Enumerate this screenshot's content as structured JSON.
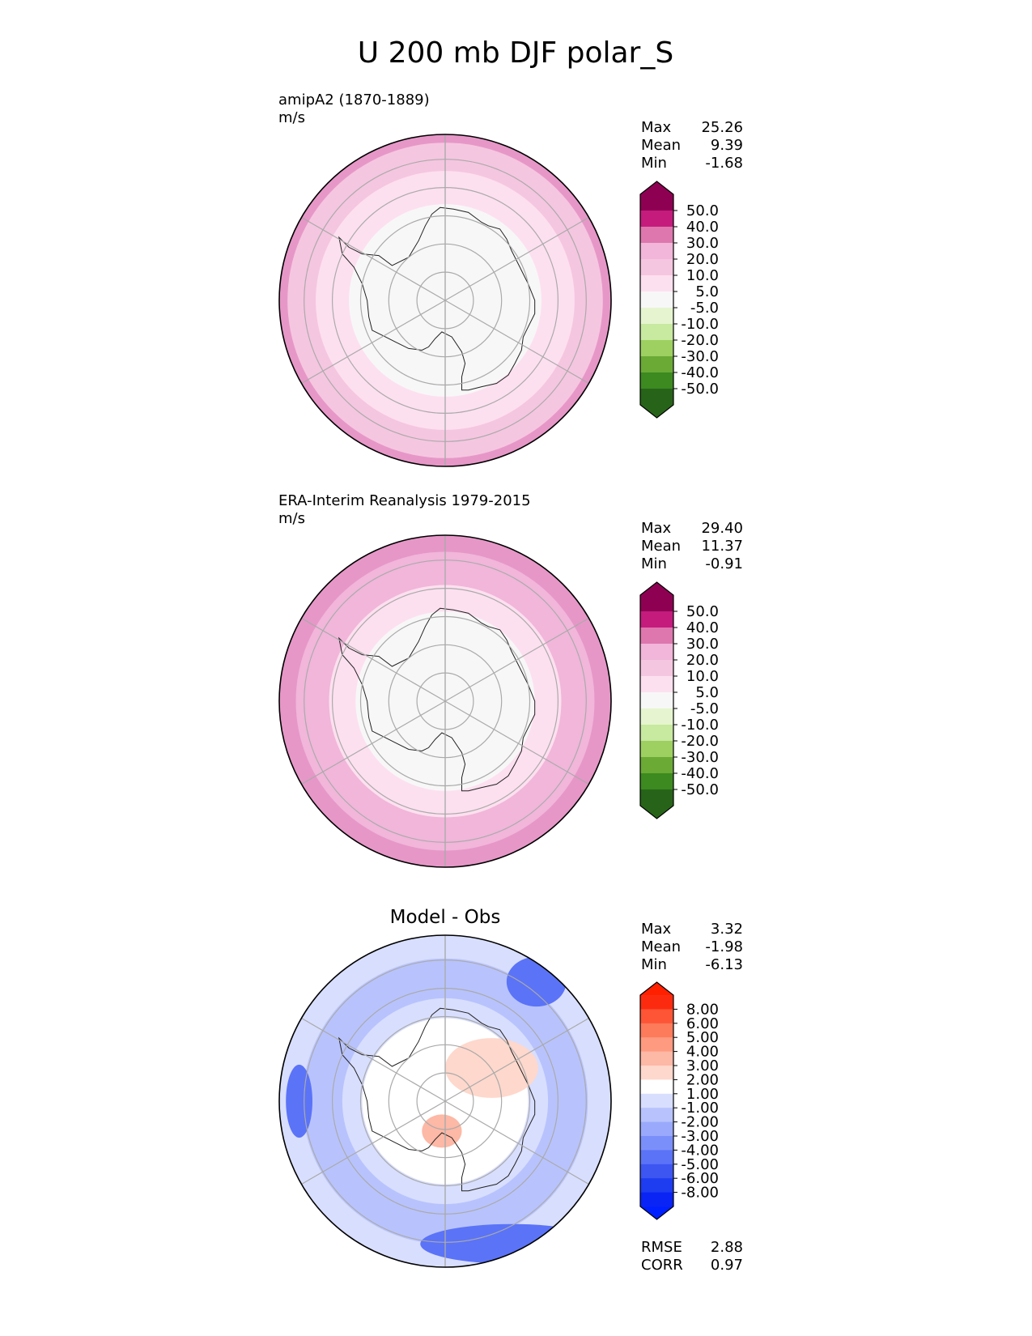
{
  "title": "U 200 mb DJF polar_S",
  "chart_data": [
    {
      "type": "heatmap",
      "panel": "test",
      "title": "amipA2 (1870-1889)",
      "units": "m/s",
      "projection": "south-polar-stereographic",
      "stats": [
        {
          "label": "Max",
          "value": "25.26"
        },
        {
          "label": "Mean",
          "value": "9.39"
        },
        {
          "label": "Min",
          "value": "-1.68"
        }
      ],
      "colorbar": {
        "extend": "both",
        "ticks": [
          "50.0",
          "40.0",
          "30.0",
          "20.0",
          "10.0",
          "5.0",
          "-5.0",
          "-10.0",
          "-20.0",
          "-30.0",
          "-40.0",
          "-50.0"
        ],
        "colors": [
          "#8e0152",
          "#c51b7d",
          "#de77ae",
          "#f1b6da",
          "#f5c6e0",
          "#fde0ef",
          "#f7f7f7",
          "#e6f5d0",
          "#c7e9a0",
          "#9dd060",
          "#6aaa35",
          "#3c8a20",
          "#276419"
        ],
        "top_color": "#8e0152",
        "bottom_color": "#276419"
      },
      "bands": [
        {
          "r": 1.0,
          "color": "#e697c7"
        },
        {
          "r": 0.95,
          "color": "#f5c6e0"
        },
        {
          "r": 0.78,
          "color": "#fde0ef"
        },
        {
          "r": 0.58,
          "color": "#f7f7f7"
        }
      ]
    },
    {
      "type": "heatmap",
      "panel": "reference",
      "title": "ERA-Interim Reanalysis 1979-2015",
      "units": "m/s",
      "projection": "south-polar-stereographic",
      "stats": [
        {
          "label": "Max",
          "value": "29.40"
        },
        {
          "label": "Mean",
          "value": "11.37"
        },
        {
          "label": "Min",
          "value": "-0.91"
        }
      ],
      "colorbar": {
        "extend": "both",
        "ticks": [
          "50.0",
          "40.0",
          "30.0",
          "20.0",
          "10.0",
          "5.0",
          "-5.0",
          "-10.0",
          "-20.0",
          "-30.0",
          "-40.0",
          "-50.0"
        ],
        "colors": [
          "#8e0152",
          "#c51b7d",
          "#de77ae",
          "#f1b6da",
          "#f5c6e0",
          "#fde0ef",
          "#f7f7f7",
          "#e6f5d0",
          "#c7e9a0",
          "#9dd060",
          "#6aaa35",
          "#3c8a20",
          "#276419"
        ],
        "top_color": "#8e0152",
        "bottom_color": "#276419"
      },
      "bands": [
        {
          "r": 1.0,
          "color": "#e697c7"
        },
        {
          "r": 0.9,
          "color": "#f1b6da"
        },
        {
          "r": 0.7,
          "color": "#fde0ef"
        },
        {
          "r": 0.54,
          "color": "#f7f7f7"
        }
      ]
    },
    {
      "type": "heatmap",
      "panel": "difference",
      "title": "Model - Obs",
      "units": "",
      "projection": "south-polar-stereographic",
      "stats": [
        {
          "label": "Max",
          "value": "3.32"
        },
        {
          "label": "Mean",
          "value": "-1.98"
        },
        {
          "label": "Min",
          "value": "-6.13"
        }
      ],
      "metrics": [
        {
          "label": "RMSE",
          "value": "2.88"
        },
        {
          "label": "CORR",
          "value": "0.97"
        }
      ],
      "colorbar": {
        "extend": "both",
        "ticks": [
          "8.00",
          "6.00",
          "5.00",
          "4.00",
          "3.00",
          "2.00",
          "1.00",
          "-1.00",
          "-2.00",
          "-3.00",
          "-4.00",
          "-5.00",
          "-6.00",
          "-8.00"
        ],
        "colors": [
          "#fc2b10",
          "#fd5535",
          "#fd7a5a",
          "#fd9a80",
          "#fdb8a6",
          "#fed8cc",
          "#ffffff",
          "#d8defe",
          "#b8c3fd",
          "#9aa9fc",
          "#7b8ffb",
          "#5b73f7",
          "#3d56f2",
          "#1e3cf0",
          "#0a24f5"
        ],
        "top_color": "#ff2000",
        "bottom_color": "#0020ff"
      },
      "bands": [
        {
          "r": 1.0,
          "color": "#d8defe"
        },
        {
          "r": 0.86,
          "color": "#b8c3fd"
        },
        {
          "r": 0.62,
          "color": "#d8defe"
        },
        {
          "r": 0.5,
          "color": "#ffffff"
        }
      ]
    }
  ]
}
